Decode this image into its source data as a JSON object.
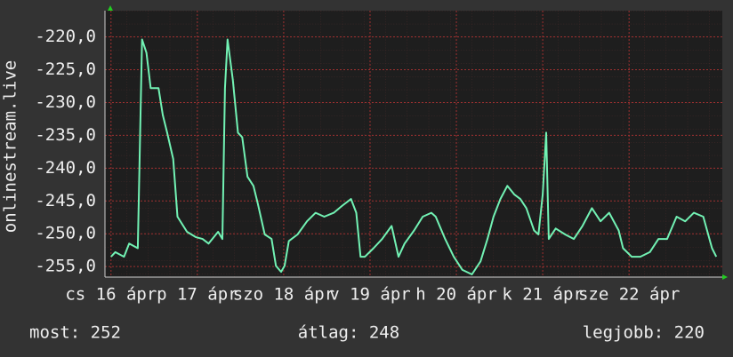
{
  "chart_data": {
    "type": "line",
    "y_label": "onlinestream.live",
    "x": [
      16.0,
      16.05,
      16.15,
      16.21,
      16.31,
      16.36,
      16.41,
      16.46,
      16.55,
      16.6,
      16.65,
      16.72,
      16.77,
      16.88,
      16.98,
      17.06,
      17.13,
      17.24,
      17.29,
      17.32,
      17.35,
      17.41,
      17.47,
      17.52,
      17.58,
      17.65,
      17.7,
      17.78,
      17.86,
      17.91,
      17.97,
      18.01,
      18.06,
      18.16,
      18.27,
      18.37,
      18.47,
      18.58,
      18.68,
      18.78,
      18.84,
      18.89,
      18.94,
      19.04,
      19.14,
      19.25,
      19.33,
      19.4,
      19.51,
      19.61,
      19.71,
      19.76,
      19.87,
      19.97,
      20.07,
      20.18,
      20.28,
      20.36,
      20.43,
      20.51,
      20.59,
      20.67,
      20.74,
      20.81,
      20.9,
      20.95,
      21.0,
      21.04,
      21.07,
      21.15,
      21.26,
      21.36,
      21.46,
      21.57,
      21.67,
      21.77,
      21.88,
      21.93,
      22.03,
      22.13,
      22.24,
      22.34,
      22.44,
      22.55,
      22.65,
      22.75,
      22.86,
      22.96,
      23.01
    ],
    "series": [
      {
        "color": "#72f2b4",
        "values": [
          -253.5,
          -252.8,
          -253.5,
          -251.5,
          -252.2,
          -220.4,
          -222.4,
          -227.8,
          -227.8,
          -231.9,
          -234.6,
          -238.6,
          -247.4,
          -249.7,
          -250.5,
          -250.8,
          -251.5,
          -249.7,
          -250.8,
          -227.8,
          -220.4,
          -226.5,
          -234.6,
          -235.3,
          -241.3,
          -242.7,
          -245.4,
          -250.1,
          -250.8,
          -254.9,
          -255.8,
          -254.9,
          -251.1,
          -250.1,
          -248.1,
          -246.8,
          -247.4,
          -246.8,
          -245.7,
          -244.7,
          -246.8,
          -253.5,
          -253.5,
          -252.2,
          -250.8,
          -248.8,
          -253.5,
          -251.5,
          -249.5,
          -247.4,
          -246.8,
          -247.4,
          -250.8,
          -253.5,
          -255.5,
          -256.2,
          -254.2,
          -250.8,
          -247.4,
          -244.7,
          -242.7,
          -244.0,
          -244.7,
          -246.1,
          -249.5,
          -250.1,
          -244.0,
          -234.6,
          -250.8,
          -249.2,
          -250.1,
          -250.8,
          -248.8,
          -246.1,
          -248.1,
          -246.8,
          -249.5,
          -252.2,
          -253.5,
          -253.5,
          -252.8,
          -250.8,
          -250.8,
          -247.4,
          -248.1,
          -246.8,
          -247.4,
          -252.2,
          -253.5
        ]
      }
    ],
    "xlim": [
      15.93,
      23.08
    ],
    "xticks": [
      {
        "value": 16,
        "label": "cs 16 ápr"
      },
      {
        "value": 17,
        "label": "p 17 ápr"
      },
      {
        "value": 18,
        "label": "szo 18 ápr"
      },
      {
        "value": 19,
        "label": "v 19 ápr"
      },
      {
        "value": 20,
        "label": "h 20 ápr"
      },
      {
        "value": 21,
        "label": "k 21 ápr"
      },
      {
        "value": 22,
        "label": "sze 22 ápr"
      }
    ],
    "ylim": [
      -256.6,
      -216
    ],
    "yticks": [
      {
        "value": -255,
        "label": "-255,0"
      },
      {
        "value": -250,
        "label": "-250,0"
      },
      {
        "value": -245,
        "label": "-245,0"
      },
      {
        "value": -240,
        "label": "-240,0"
      },
      {
        "value": -235,
        "label": "-235,0"
      },
      {
        "value": -230,
        "label": "-230,0"
      },
      {
        "value": -225,
        "label": "-225,0"
      },
      {
        "value": -220,
        "label": "-220,0"
      }
    ],
    "grid": true,
    "footer": [
      "most: 252",
      "átlag: 248",
      "legjobb: 220"
    ]
  }
}
